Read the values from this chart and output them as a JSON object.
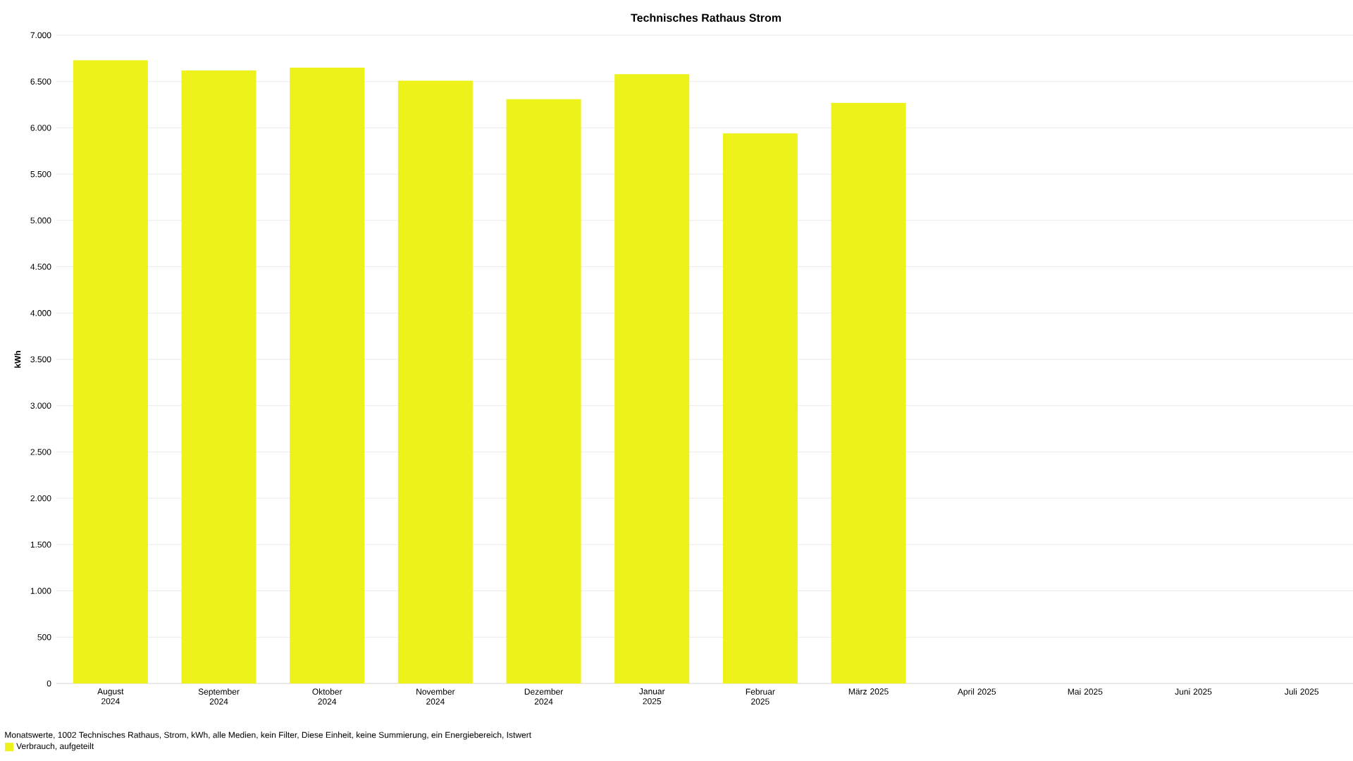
{
  "chart_data": {
    "type": "bar",
    "title": "Technisches Rathaus Strom",
    "ylabel": "kWh",
    "categories": [
      "August 2024",
      "September 2024",
      "Oktober 2024",
      "November 2024",
      "Dezember 2024",
      "Januar 2025",
      "Februar 2025",
      "März 2025",
      "April 2025",
      "Mai 2025",
      "Juni 2025",
      "Juli 2025"
    ],
    "series": [
      {
        "name": "Verbrauch, aufgeteilt",
        "color": "#edf21a",
        "values": [
          6730,
          6620,
          6650,
          6510,
          6310,
          6580,
          5940,
          6270,
          null,
          null,
          null,
          null
        ]
      }
    ],
    "ylim": [
      0,
      7000
    ],
    "yticks": [
      {
        "value": 0,
        "label": "0"
      },
      {
        "value": 500,
        "label": "500"
      },
      {
        "value": 1000,
        "label": "1.000"
      },
      {
        "value": 1500,
        "label": "1.500"
      },
      {
        "value": 2000,
        "label": "2.000"
      },
      {
        "value": 2500,
        "label": "2.500"
      },
      {
        "value": 3000,
        "label": "3.000"
      },
      {
        "value": 3500,
        "label": "3.500"
      },
      {
        "value": 4000,
        "label": "4.000"
      },
      {
        "value": 4500,
        "label": "4.500"
      },
      {
        "value": 5000,
        "label": "5.000"
      },
      {
        "value": 5500,
        "label": "5.500"
      },
      {
        "value": 6000,
        "label": "6.000"
      },
      {
        "value": 6500,
        "label": "6.500"
      },
      {
        "value": 7000,
        "label": "7.000"
      }
    ],
    "grid": "y",
    "legend": "bottom left",
    "annotations": [
      "Monatswerte, 1002 Technisches Rathaus, Strom, kWh, alle Medien, kein Filter, Diese Einheit, keine Summierung, ein Energiebereich, Istwert"
    ]
  }
}
